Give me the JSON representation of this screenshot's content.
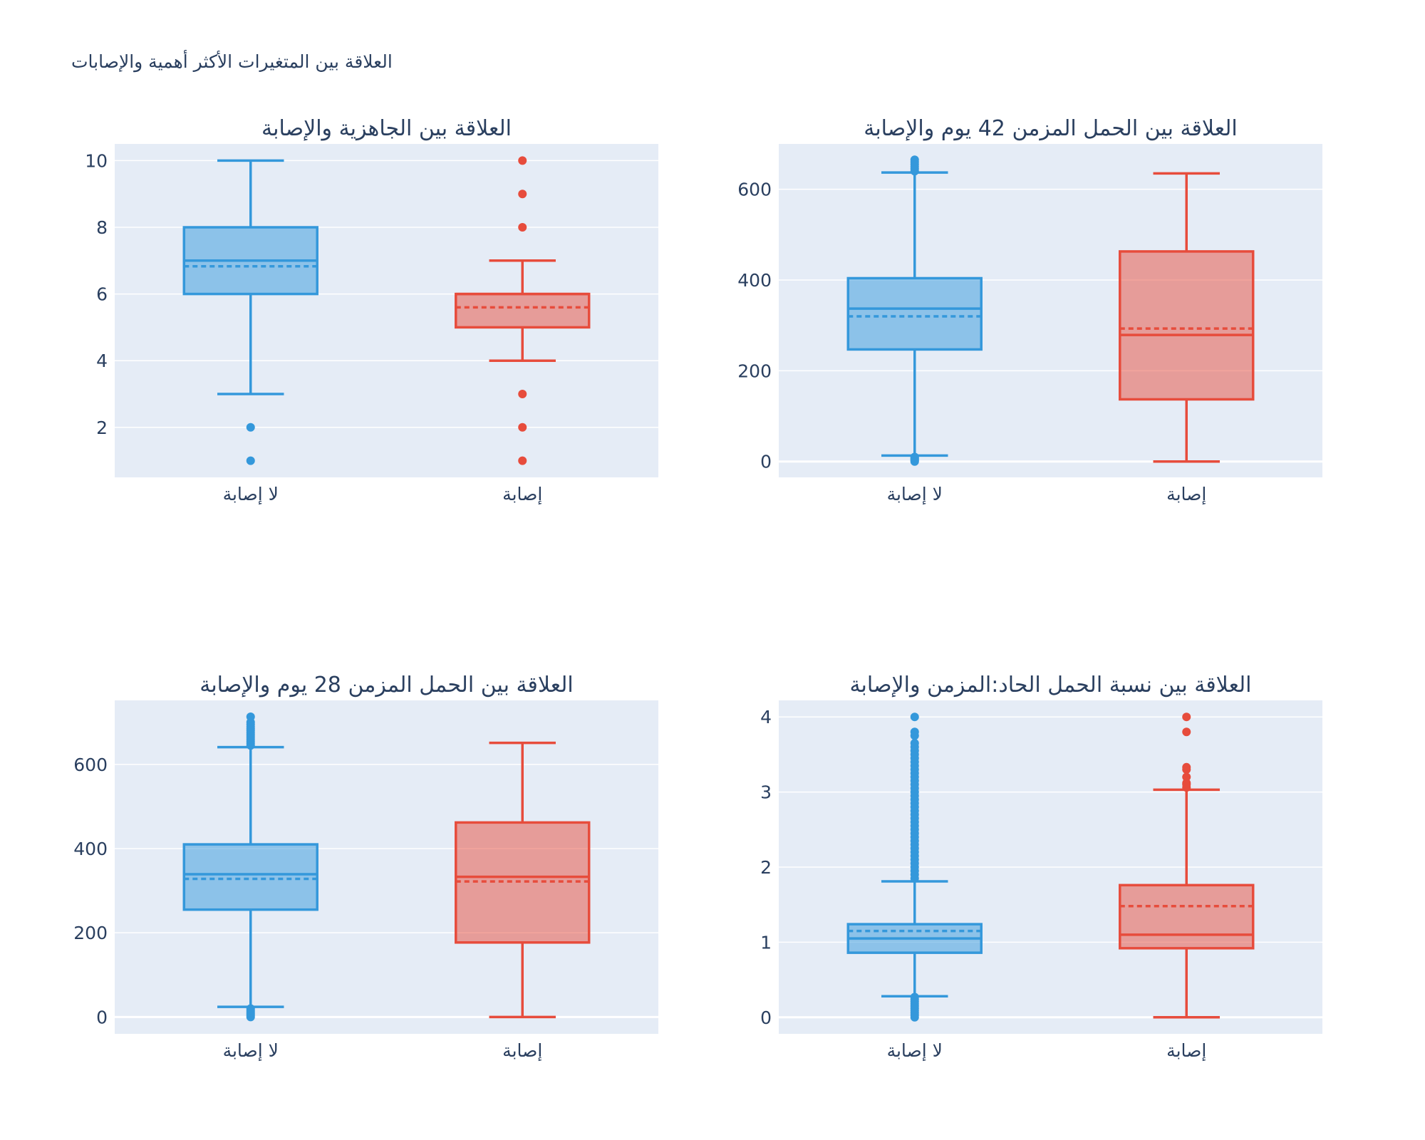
{
  "figure": {
    "title": "العلاقة بين المتغيرات الأكثر أهمية والإصابات"
  },
  "colors": {
    "no_injury": "#3498db",
    "injury": "#e74c3c",
    "plot_bg": "#e5ecf6",
    "grid": "#ffffff",
    "text": "#2a3f5f"
  },
  "chart_data": [
    {
      "type": "box",
      "title": "العلاقة بين الجاهزية والإصابة",
      "categories": [
        "لا إصابة",
        "إصابة"
      ],
      "ylim": [
        0.5,
        10.5
      ],
      "yticks": [
        2,
        4,
        6,
        8,
        10
      ],
      "boxes": [
        {
          "color_key": "no_injury",
          "lower_fence": 3,
          "q1": 6,
          "median": 7,
          "mean": 6.83,
          "q3": 8,
          "upper_fence": 10,
          "outliers": [
            1,
            2
          ]
        },
        {
          "color_key": "injury",
          "lower_fence": 4,
          "q1": 5,
          "median": 6,
          "mean": 5.6,
          "q3": 6,
          "upper_fence": 7,
          "outliers": [
            1,
            2,
            3,
            8,
            9,
            10
          ]
        }
      ]
    },
    {
      "type": "box",
      "title": "العلاقة بين الحمل المزمن 42 يوم والإصابة",
      "categories": [
        "لا إصابة",
        "إصابة"
      ],
      "ylim": [
        -35,
        700
      ],
      "yticks": [
        0,
        200,
        400,
        600
      ],
      "boxes": [
        {
          "color_key": "no_injury",
          "lower_fence": 13,
          "q1": 247,
          "median": 337,
          "mean": 320,
          "q3": 404,
          "upper_fence": 637,
          "outliers": [
            0,
            2,
            4,
            6,
            8,
            10,
            640,
            645,
            650,
            655,
            660,
            665
          ]
        },
        {
          "color_key": "injury",
          "lower_fence": 0,
          "q1": 137,
          "median": 279,
          "mean": 293,
          "q3": 463,
          "upper_fence": 635,
          "outliers": []
        }
      ]
    },
    {
      "type": "box",
      "title": "العلاقة بين الحمل المزمن 28 يوم والإصابة",
      "categories": [
        "لا إصابة",
        "إصابة"
      ],
      "ylim": [
        -40,
        752
      ],
      "yticks": [
        0,
        200,
        400,
        600
      ],
      "boxes": [
        {
          "color_key": "no_injury",
          "lower_fence": 24,
          "q1": 255,
          "median": 339,
          "mean": 328,
          "q3": 410,
          "upper_fence": 641,
          "outliers": [
            0,
            4,
            8,
            12,
            16,
            20,
            645,
            650,
            655,
            660,
            665,
            670,
            675,
            680,
            685,
            690,
            695,
            700,
            713
          ]
        },
        {
          "color_key": "injury",
          "lower_fence": 0,
          "q1": 177,
          "median": 333,
          "mean": 322,
          "q3": 462,
          "upper_fence": 651,
          "outliers": []
        }
      ]
    },
    {
      "type": "box",
      "title": "العلاقة بين نسبة الحمل الحاد:المزمن والإصابة",
      "categories": [
        "لا إصابة",
        "إصابة"
      ],
      "ylim": [
        -0.22,
        4.22
      ],
      "yticks": [
        0,
        1,
        2,
        3,
        4
      ],
      "boxes": [
        {
          "color_key": "no_injury",
          "lower_fence": 0.28,
          "q1": 0.86,
          "median": 1.05,
          "mean": 1.15,
          "q3": 1.24,
          "upper_fence": 1.81,
          "outliers": [
            0,
            0.03,
            0.06,
            0.09,
            0.12,
            0.15,
            0.18,
            0.21,
            0.24,
            0.27,
            1.85,
            1.9,
            1.95,
            2.0,
            2.05,
            2.1,
            2.15,
            2.2,
            2.25,
            2.3,
            2.35,
            2.4,
            2.45,
            2.5,
            2.55,
            2.6,
            2.65,
            2.7,
            2.75,
            2.8,
            2.85,
            2.9,
            2.95,
            3.0,
            3.05,
            3.1,
            3.15,
            3.2,
            3.25,
            3.3,
            3.35,
            3.4,
            3.45,
            3.5,
            3.55,
            3.6,
            3.65,
            3.75,
            3.8,
            4.0
          ]
        },
        {
          "color_key": "injury",
          "lower_fence": 0,
          "q1": 0.92,
          "median": 1.1,
          "mean": 1.48,
          "q3": 1.76,
          "upper_fence": 3.03,
          "outliers": [
            3.06,
            3.1,
            3.12,
            3.2,
            3.3,
            3.33,
            3.8,
            4.0
          ]
        }
      ]
    }
  ]
}
